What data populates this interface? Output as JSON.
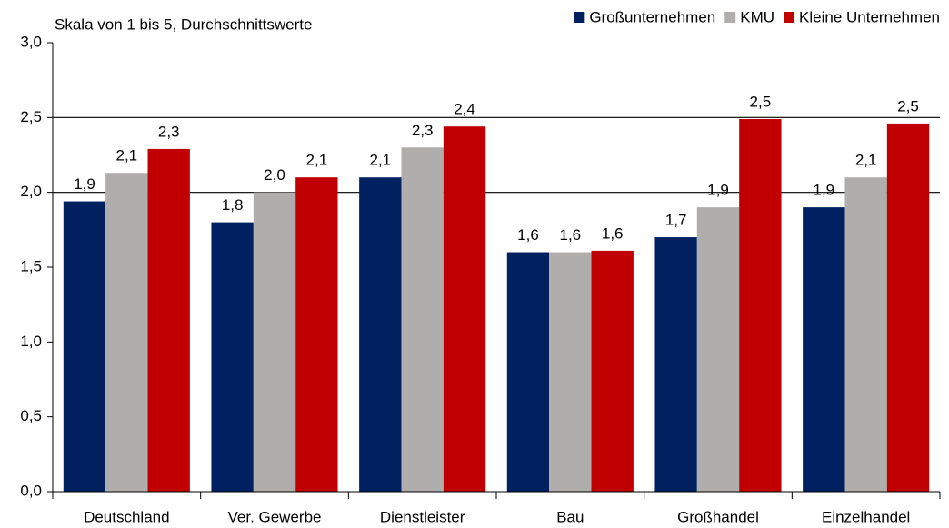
{
  "chart_data": {
    "type": "bar",
    "title": "Skala von 1 bis 5, Durchschnittswerte",
    "categories": [
      "Deutschland",
      "Ver. Gewerbe",
      "Dienstleister",
      "Bau",
      "Großhandel",
      "Einzelhandel"
    ],
    "series": [
      {
        "name": "Großunternehmen",
        "color": "#002060",
        "values": [
          1.94,
          1.8,
          2.1,
          1.6,
          1.7,
          1.9
        ],
        "value_labels": [
          "1,9",
          "1,8",
          "2,1",
          "1,6",
          "1,7",
          "1,9"
        ]
      },
      {
        "name": "KMU",
        "color": "#b0adad",
        "values": [
          2.13,
          2.0,
          2.3,
          1.6,
          1.9,
          2.1
        ],
        "value_labels": [
          "2,1",
          "2,0",
          "2,3",
          "1,6",
          "1,9",
          "2,1"
        ]
      },
      {
        "name": "Kleine Unternehmen",
        "color": "#c00000",
        "values": [
          2.29,
          2.1,
          2.44,
          1.61,
          2.49,
          2.46
        ],
        "value_labels": [
          "2,3",
          "2,1",
          "2,4",
          "1,6",
          "2,5",
          "2,5"
        ]
      }
    ],
    "ylim": [
      0,
      3
    ],
    "yticks": [
      {
        "value": 0,
        "label": "0,0"
      },
      {
        "value": 0.5,
        "label": "0,5"
      },
      {
        "value": 1,
        "label": "1,0"
      },
      {
        "value": 1.5,
        "label": "1,5"
      },
      {
        "value": 2,
        "label": "2,0"
      },
      {
        "value": 2.5,
        "label": "2,5"
      },
      {
        "value": 3,
        "label": "3,0"
      }
    ],
    "gridlines": [
      2,
      2.5
    ],
    "legend": "top-right"
  }
}
